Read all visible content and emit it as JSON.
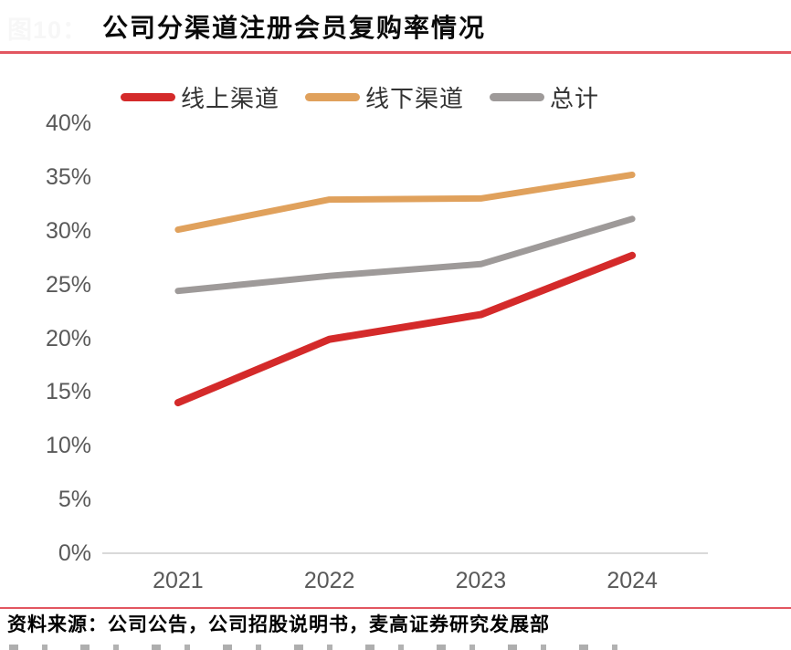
{
  "header": {
    "figure_label": "图10：",
    "title": "公司分渠道注册会员复购率情况"
  },
  "chart_data": {
    "type": "line",
    "title": "公司分渠道注册会员复购率情况",
    "categories": [
      "2021",
      "2022",
      "2023",
      "2024"
    ],
    "series": [
      {
        "name": "线上渠道",
        "color": "#d42a2a",
        "values": [
          14.0,
          19.9,
          22.2,
          27.7
        ]
      },
      {
        "name": "线下渠道",
        "color": "#e0a15c",
        "values": [
          30.1,
          32.9,
          33.0,
          35.2
        ]
      },
      {
        "name": "总计",
        "color": "#9e9a99",
        "values": [
          24.4,
          25.8,
          26.9,
          31.1
        ]
      }
    ],
    "xlabel": "",
    "ylabel": "",
    "ylim": [
      0,
      40
    ],
    "ytick_step": 5,
    "yticks": [
      "0%",
      "5%",
      "10%",
      "15%",
      "20%",
      "25%",
      "30%",
      "35%",
      "40%"
    ],
    "grid": false,
    "legend_position": "top"
  },
  "footer": {
    "source_text": "资料来源：公司公告，公司招股说明书，麦高证券研究发展部"
  },
  "colors": {
    "rule_red": "#e25660",
    "axis_line": "#d9d9d9",
    "tick_label": "#595959",
    "legend_label": "#333333",
    "title_text": "#0a0a0a",
    "figure_label_faint": "#f7f7f7"
  }
}
